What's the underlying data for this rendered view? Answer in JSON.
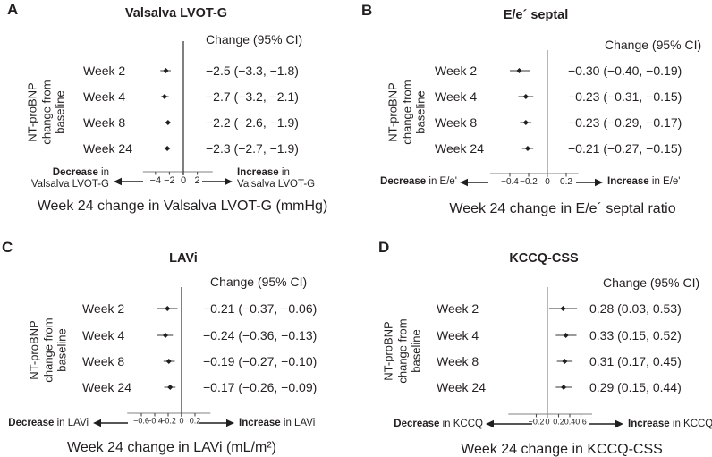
{
  "palette": {
    "background": "#ffffff",
    "text": "#231f20",
    "axis_line": "#9a9a9a",
    "tick_mark": "#4b4b4b",
    "zero_line_dark": "#3b3b3b",
    "zero_line_gray": "#8e8e8e",
    "ci_whisker": "#787878",
    "marker": "#1f1f1f",
    "arrow": "#1f1f1f"
  },
  "chart_data": [
    {
      "type": "forest",
      "panel_label": "A",
      "title": "Valsalva LVOT-G",
      "ci_header": "Change (95% CI)",
      "ylabel_lines": [
        "NT-proBNP",
        "change from",
        "baseline"
      ],
      "rows": [
        {
          "week": "Week 2",
          "estimate": -2.5,
          "ci_low": -3.3,
          "ci_high": -1.8,
          "ci_text": "−2.5 (−3.3, −1.8)"
        },
        {
          "week": "Week 4",
          "estimate": -2.7,
          "ci_low": -3.2,
          "ci_high": -2.1,
          "ci_text": "−2.7 (−3.2, −2.1)"
        },
        {
          "week": "Week 8",
          "estimate": -2.2,
          "ci_low": -2.6,
          "ci_high": -1.9,
          "ci_text": "−2.2 (−2.6, −1.9)"
        },
        {
          "week": "Week 24",
          "estimate": -2.3,
          "ci_low": -2.7,
          "ci_high": -1.9,
          "ci_text": "−2.3 (−2.7, −1.9)"
        }
      ],
      "axis": {
        "ticks": [
          -4,
          -2,
          0,
          2
        ],
        "tick_labels": [
          "−4",
          "−2",
          "0",
          "2"
        ],
        "range": [
          -5.8,
          4.2
        ],
        "zero_reference_line": true
      },
      "zero_line_shade": "dark",
      "direction_left": {
        "bold": "Decrease",
        "rest": " in",
        "line2": "Valsalva LVOT-G"
      },
      "direction_right": {
        "bold": "Increase",
        "rest": " in",
        "line2": "Valsalva LVOT-G"
      },
      "caption": "Week 24 change in Valsalva LVOT-G (mmHg)"
    },
    {
      "type": "forest",
      "panel_label": "B",
      "title": "E/e´ septal",
      "ci_header": "Change (95% CI)",
      "ylabel_lines": [
        "NT-proBNP",
        "change from",
        "baseline"
      ],
      "rows": [
        {
          "week": "Week 2",
          "estimate": -0.3,
          "ci_low": -0.4,
          "ci_high": -0.19,
          "ci_text": "−0.30 (−0.40, −0.19)"
        },
        {
          "week": "Week 4",
          "estimate": -0.23,
          "ci_low": -0.31,
          "ci_high": -0.15,
          "ci_text": "−0.23 (−0.31, −0.15)"
        },
        {
          "week": "Week 8",
          "estimate": -0.23,
          "ci_low": -0.29,
          "ci_high": -0.17,
          "ci_text": "−0.23 (−0.29, −0.17)"
        },
        {
          "week": "Week 24",
          "estimate": -0.21,
          "ci_low": -0.27,
          "ci_high": -0.15,
          "ci_text": "−0.21 (−0.27, −0.15)"
        }
      ],
      "axis": {
        "ticks": [
          -0.4,
          -0.2,
          0,
          0.2
        ],
        "tick_labels": [
          "−0.4",
          "−0.2",
          "0",
          "0.2"
        ],
        "range": [
          -0.61,
          0.33
        ],
        "zero_reference_line": true
      },
      "zero_line_shade": "gray",
      "direction_left": {
        "bold": "Decrease",
        "rest": " in E/e'",
        "line2": ""
      },
      "direction_right": {
        "bold": "Increase",
        "rest": " in E/e'",
        "line2": ""
      },
      "caption": "Week 24 change in E/e´ septal ratio"
    },
    {
      "type": "forest",
      "panel_label": "C",
      "title": "LAVi",
      "ci_header": "Change (95% CI)",
      "ylabel_lines": [
        "NT-proBNP",
        "change from",
        "baseline"
      ],
      "rows": [
        {
          "week": "Week 2",
          "estimate": -0.21,
          "ci_low": -0.37,
          "ci_high": -0.06,
          "ci_text": "−0.21 (−0.37, −0.06)"
        },
        {
          "week": "Week 4",
          "estimate": -0.24,
          "ci_low": -0.36,
          "ci_high": -0.13,
          "ci_text": "−0.24 (−0.36, −0.13)"
        },
        {
          "week": "Week 8",
          "estimate": -0.19,
          "ci_low": -0.27,
          "ci_high": -0.1,
          "ci_text": "−0.19 (−0.27, −0.10)"
        },
        {
          "week": "Week 24",
          "estimate": -0.17,
          "ci_low": -0.26,
          "ci_high": -0.09,
          "ci_text": "−0.17 (−0.26, −0.09)"
        }
      ],
      "axis": {
        "ticks": [
          -0.6,
          -0.4,
          -0.2,
          0,
          0.2
        ],
        "tick_labels": [
          "−0.6",
          "−0.4",
          "−0.2",
          "0",
          "0.2"
        ],
        "range": [
          -0.81,
          0.43
        ],
        "zero_reference_line": true
      },
      "zero_line_shade": "dark",
      "direction_left": {
        "bold": "Decrease",
        "rest": " in LAVi",
        "line2": ""
      },
      "direction_right": {
        "bold": "Increase",
        "rest": " in LAVi",
        "line2": ""
      },
      "caption": "Week 24 change in LAVi (mL/m²)"
    },
    {
      "type": "forest",
      "panel_label": "D",
      "title": "KCCQ-CSS",
      "ci_header": "Change (95% CI)",
      "ylabel_lines": [
        "NT-proBNP",
        "change from",
        "baseline"
      ],
      "rows": [
        {
          "week": "Week 2",
          "estimate": 0.28,
          "ci_low": 0.03,
          "ci_high": 0.53,
          "ci_text": "0.28 (0.03, 0.53)"
        },
        {
          "week": "Week 4",
          "estimate": 0.33,
          "ci_low": 0.15,
          "ci_high": 0.52,
          "ci_text": "0.33 (0.15, 0.52)"
        },
        {
          "week": "Week 8",
          "estimate": 0.31,
          "ci_low": 0.17,
          "ci_high": 0.45,
          "ci_text": "0.31 (0.17, 0.45)"
        },
        {
          "week": "Week 24",
          "estimate": 0.29,
          "ci_low": 0.15,
          "ci_high": 0.44,
          "ci_text": "0.29 (0.15, 0.44)"
        }
      ],
      "axis": {
        "ticks": [
          -0.2,
          0,
          0.2,
          0.4,
          0.6
        ],
        "tick_labels": [
          "−0.2",
          "0",
          "0.2",
          "0.4",
          "0.6"
        ],
        "range": [
          -0.7,
          0.8
        ],
        "zero_reference_line": true
      },
      "zero_line_shade": "gray",
      "direction_left": {
        "bold": "Decrease",
        "rest": " in KCCQ",
        "line2": ""
      },
      "direction_right": {
        "bold": "Increase",
        "rest": " in KCCQ",
        "line2": ""
      },
      "caption": "Week 24 change in KCCQ-CSS"
    }
  ]
}
